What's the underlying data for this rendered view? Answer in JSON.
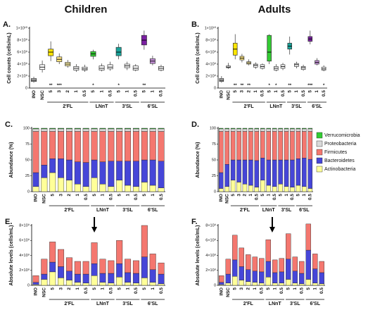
{
  "headers": [
    "Children",
    "Adults"
  ],
  "chart_data": [
    {
      "type": "box",
      "panel": "A.",
      "y_label": "Cell counts (cells/mL)",
      "categories": [
        "INO",
        "NSC",
        "5",
        "3",
        "2",
        "1",
        "0.5",
        "5",
        "1",
        "0.5",
        "5",
        "1",
        "0.5",
        "5",
        "1",
        "0.5"
      ],
      "groups": [
        "2'FL",
        "LNnT",
        "3'SL",
        "6'SL"
      ],
      "colors": [
        "#bfbfbf",
        "#ffffff",
        "#ffe600",
        "#ffe680",
        "#fff1a8",
        "#ffffff",
        "#ffffff",
        "#33cc33",
        "#ffffff",
        "#ffffff",
        "#1aa39a",
        "#ffffff",
        "#ffffff",
        "#7a1fa2",
        "#c38fd6",
        "#ffffff"
      ],
      "min": [
        900000000.0,
        2600000000.0,
        4500000000.0,
        4000000000.0,
        3400000000.0,
        2700000000.0,
        2700000000.0,
        4800000000.0,
        2800000000.0,
        2900000000.0,
        4800000000.0,
        3000000000.0,
        2800000000.0,
        6400000000.0,
        3800000000.0,
        2800000000.0
      ],
      "q1": [
        1100000000.0,
        3100000000.0,
        5400000000.0,
        4400000000.0,
        3700000000.0,
        3000000000.0,
        3000000000.0,
        5300000000.0,
        3000000000.0,
        3200000000.0,
        5400000000.0,
        3400000000.0,
        3000000000.0,
        7200000000.0,
        4100000000.0,
        3000000000.0
      ],
      "median": [
        1300000000.0,
        3500000000.0,
        6000000000.0,
        4800000000.0,
        4000000000.0,
        3300000000.0,
        3200000000.0,
        5700000000.0,
        3300000000.0,
        3500000000.0,
        6000000000.0,
        3700000000.0,
        3300000000.0,
        8000000000.0,
        4500000000.0,
        3300000000.0
      ],
      "q3": [
        1600000000.0,
        3900000000.0,
        6500000000.0,
        5200000000.0,
        4300000000.0,
        3600000000.0,
        3500000000.0,
        6100000000.0,
        3700000000.0,
        3900000000.0,
        6800000000.0,
        4000000000.0,
        3700000000.0,
        8800000000.0,
        4900000000.0,
        3600000000.0
      ],
      "max": [
        1900000000.0,
        4600000000.0,
        7800000000.0,
        5800000000.0,
        4700000000.0,
        4000000000.0,
        3900000000.0,
        6400000000.0,
        4100000000.0,
        4400000000.0,
        7400000000.0,
        4400000000.0,
        4000000000.0,
        9600000000.0,
        5400000000.0,
        3900000000.0
      ],
      "sig": [
        null,
        null,
        "**",
        "***",
        null,
        null,
        null,
        "*",
        null,
        null,
        "*",
        null,
        null,
        "**",
        null,
        null
      ],
      "ylim": [
        0,
        10000000000.0
      ],
      "yticks": [
        0,
        {
          "value": 2000000000.0,
          "label": "2×10⁹"
        },
        {
          "value": 4000000000.0,
          "label": "4×10⁹"
        },
        {
          "value": 6000000000.0,
          "label": "6×10⁹"
        },
        {
          "value": 8000000000.0,
          "label": "8×10⁹"
        },
        {
          "value": 10000000000.0,
          "label": "1×10¹⁰"
        }
      ]
    },
    {
      "type": "box",
      "panel": "B.",
      "y_label": "Cell counts (cells/mL)",
      "categories": [
        "INO",
        "NSC",
        "5",
        "3",
        "2",
        "1",
        "0.5",
        "5",
        "1",
        "0.5",
        "5",
        "1",
        "0.5",
        "5",
        "1",
        "0.5"
      ],
      "groups": [
        "2'FL",
        "LNnT",
        "3'SL",
        "6'SL"
      ],
      "colors": [
        "#bfbfbf",
        "#ffffff",
        "#ffe600",
        "#ffe680",
        "#fff1a8",
        "#ffffff",
        "#ffffff",
        "#33cc33",
        "#ffffff",
        "#ffffff",
        "#1aa39a",
        "#ffffff",
        "#ffffff",
        "#7a1fa2",
        "#c38fd6",
        "#ffffff"
      ],
      "min": [
        900000000.0,
        3200000000.0,
        4800000000.0,
        4300000000.0,
        3800000000.0,
        3200000000.0,
        3100000000.0,
        4000000000.0,
        2800000000.0,
        3000000000.0,
        5600000000.0,
        3300000000.0,
        2900000000.0,
        7300000000.0,
        3800000000.0,
        2800000000.0
      ],
      "q1": [
        1100000000.0,
        3400000000.0,
        5500000000.0,
        4700000000.0,
        4000000000.0,
        3500000000.0,
        3300000000.0,
        4500000000.0,
        3000000000.0,
        3300000000.0,
        6500000000.0,
        3600000000.0,
        3100000000.0,
        7800000000.0,
        4000000000.0,
        3000000000.0
      ],
      "median": [
        1300000000.0,
        3500000000.0,
        6500000000.0,
        5000000000.0,
        4200000000.0,
        3800000000.0,
        3600000000.0,
        6000000000.0,
        3300000000.0,
        3600000000.0,
        7000000000.0,
        3900000000.0,
        3400000000.0,
        8200000000.0,
        4300000000.0,
        3200000000.0
      ],
      "q3": [
        1600000000.0,
        3700000000.0,
        7500000000.0,
        5300000000.0,
        4400000000.0,
        4000000000.0,
        3900000000.0,
        8800000000.0,
        3600000000.0,
        3900000000.0,
        7500000000.0,
        4100000000.0,
        3600000000.0,
        8600000000.0,
        4600000000.0,
        3500000000.0
      ],
      "max": [
        2000000000.0,
        4200000000.0,
        9000000000.0,
        5700000000.0,
        4800000000.0,
        4300000000.0,
        4100000000.0,
        9000000000.0,
        4000000000.0,
        4200000000.0,
        8600000000.0,
        4400000000.0,
        3900000000.0,
        9600000000.0,
        5000000000.0,
        3800000000.0
      ],
      "sig": [
        null,
        null,
        "**",
        "**",
        "**",
        null,
        null,
        "*",
        "*",
        null,
        "**",
        null,
        null,
        "***",
        null,
        "*"
      ],
      "ylim": [
        0,
        10000000000.0
      ],
      "yticks": [
        0,
        {
          "value": 2000000000.0,
          "label": "2×10⁹"
        },
        {
          "value": 4000000000.0,
          "label": "4×10⁹"
        },
        {
          "value": 6000000000.0,
          "label": "6×10⁹"
        },
        {
          "value": 8000000000.0,
          "label": "8×10⁹"
        },
        {
          "value": 10000000000.0,
          "label": "1×10¹⁰"
        }
      ]
    },
    {
      "type": "stacked_bar",
      "panel": "C.",
      "y_label": "Abundance (%)",
      "categories": [
        "INO",
        "NSC",
        "5",
        "3",
        "2",
        "1",
        "0.5",
        "5",
        "1",
        "0.5",
        "5",
        "1",
        "0.5",
        "5",
        "1",
        "0.5"
      ],
      "groups": [
        "2'FL",
        "LNnT",
        "3'SL",
        "6'SL"
      ],
      "ylim": [
        0,
        100
      ],
      "yticks": [
        0,
        25,
        50,
        75,
        100
      ],
      "series": [
        {
          "name": "Actinobacteria",
          "color": "#ffff99",
          "values": [
            8,
            22,
            30,
            22,
            18,
            12,
            8,
            22,
            12,
            8,
            18,
            10,
            8,
            15,
            10,
            6
          ]
        },
        {
          "name": "Bacteroidetes",
          "color": "#4646d8",
          "values": [
            22,
            20,
            22,
            30,
            32,
            35,
            38,
            28,
            35,
            40,
            30,
            38,
            40,
            35,
            40,
            42
          ]
        },
        {
          "name": "Firmicutes",
          "color": "#f4776f",
          "values": [
            65,
            53,
            43,
            43,
            45,
            48,
            49,
            45,
            48,
            47,
            47,
            47,
            47,
            45,
            45,
            47
          ]
        },
        {
          "name": "Proteobacteria",
          "color": "#d9d9d9",
          "values": [
            4,
            4,
            4,
            4,
            4,
            4,
            4,
            4,
            4,
            4,
            4,
            4,
            4,
            4,
            4,
            4
          ]
        },
        {
          "name": "Verrucomicrobia",
          "color": "#33cc33",
          "values": [
            1,
            1,
            1,
            1,
            1,
            1,
            1,
            1,
            1,
            1,
            1,
            1,
            1,
            1,
            1,
            1
          ]
        }
      ]
    },
    {
      "type": "stacked_bar",
      "panel": "D.",
      "y_label": "Abundance (%)",
      "categories": [
        "INO",
        "NSC",
        "5",
        "3",
        "2",
        "1",
        "0.5",
        "5",
        "1",
        "0.5",
        "5",
        "1",
        "0.5",
        "5",
        "1",
        "0.5"
      ],
      "groups": [
        "2'FL",
        "LNnT",
        "3'SL",
        "6'SL"
      ],
      "ylim": [
        0,
        100
      ],
      "yticks": [
        0,
        25,
        50,
        75,
        100
      ],
      "legend": "right",
      "series": [
        {
          "name": "Actinobacteria",
          "color": "#ffff99",
          "values": [
            5,
            8,
            18,
            15,
            12,
            10,
            7,
            18,
            10,
            8,
            12,
            8,
            7,
            10,
            8,
            5
          ]
        },
        {
          "name": "Bacteroidetes",
          "color": "#4646d8",
          "values": [
            25,
            35,
            32,
            35,
            38,
            40,
            42,
            35,
            40,
            42,
            38,
            42,
            43,
            42,
            45,
            46
          ]
        },
        {
          "name": "Firmicutes",
          "color": "#f4776f",
          "values": [
            65,
            52,
            45,
            45,
            45,
            45,
            46,
            42,
            45,
            45,
            45,
            45,
            45,
            43,
            42,
            44
          ]
        },
        {
          "name": "Proteobacteria",
          "color": "#d9d9d9",
          "values": [
            4,
            4,
            4,
            4,
            4,
            4,
            4,
            4,
            4,
            4,
            4,
            4,
            4,
            4,
            4,
            4
          ]
        },
        {
          "name": "Verrucomicrobia",
          "color": "#33cc33",
          "values": [
            1,
            1,
            1,
            1,
            1,
            1,
            1,
            1,
            1,
            1,
            1,
            1,
            1,
            1,
            1,
            1
          ]
        }
      ]
    },
    {
      "type": "stacked_bar",
      "panel": "E.",
      "y_label": "Absolute levels (cells/mL)",
      "categories": [
        "INO",
        "NSC",
        "5",
        "3",
        "2",
        "1",
        "0.5",
        "5",
        "1",
        "0.5",
        "5",
        "1",
        "0.5",
        "5",
        "1",
        "0.5"
      ],
      "groups": [
        "2'FL",
        "LNnT",
        "3'SL",
        "6'SL"
      ],
      "ylim": [
        0,
        8000000000.0
      ],
      "yticks": [
        0,
        {
          "value": 2000000000.0,
          "label": "2×10⁹"
        },
        {
          "value": 4000000000.0,
          "label": "4×10⁹"
        },
        {
          "value": 6000000000.0,
          "label": "6×10⁹"
        },
        {
          "value": 8000000000.0,
          "label": "8×10⁹"
        }
      ],
      "series": [
        {
          "name": "Actinobacteria",
          "color": "#ffff99",
          "values": [
            100000000.0,
            800000000.0,
            1800000000.0,
            1000000000.0,
            700000000.0,
            400000000.0,
            300000000.0,
            1300000000.0,
            400000000.0,
            300000000.0,
            1100000000.0,
            400000000.0,
            300000000.0,
            1000000000.0,
            400000000.0,
            200000000.0
          ]
        },
        {
          "name": "Bacteroidetes",
          "color": "#4646d8",
          "values": [
            300000000.0,
            700000000.0,
            1300000000.0,
            1500000000.0,
            1200000000.0,
            1100000000.0,
            1200000000.0,
            1600000000.0,
            1200000000.0,
            1300000000.0,
            1800000000.0,
            1300000000.0,
            1300000000.0,
            2800000000.0,
            1700000000.0,
            1300000000.0
          ]
        },
        {
          "name": "Firmicutes",
          "color": "#f4776f",
          "values": [
            900000000.0,
            2000000000.0,
            2700000000.0,
            2300000000.0,
            1800000000.0,
            1700000000.0,
            1700000000.0,
            2800000000.0,
            1900000000.0,
            1700000000.0,
            3100000000.0,
            1800000000.0,
            1700000000.0,
            4200000000.0,
            2100000000.0,
            1500000000.0
          ]
        }
      ]
    },
    {
      "type": "stacked_bar",
      "panel": "F.",
      "y_label": "Absolute levels (cells/mL)",
      "categories": [
        "INO",
        "NSC",
        "5",
        "3",
        "2",
        "1",
        "0.5",
        "5",
        "1",
        "0.5",
        "5",
        "1",
        "0.5",
        "5",
        "1",
        "0.5"
      ],
      "groups": [
        "2'FL",
        "LNnT",
        "3'SL",
        "6'SL"
      ],
      "ylim": [
        0,
        8000000000.0
      ],
      "yticks": [
        0,
        {
          "value": 2000000000.0,
          "label": "2×10⁹"
        },
        {
          "value": 4000000000.0,
          "label": "4×10⁹"
        },
        {
          "value": 6000000000.0,
          "label": "6×10⁹"
        },
        {
          "value": 8000000000.0,
          "label": "8×10⁹"
        }
      ],
      "series": [
        {
          "name": "Actinobacteria",
          "color": "#ffff99",
          "values": [
            100000000.0,
            300000000.0,
            1200000000.0,
            700000000.0,
            500000000.0,
            400000000.0,
            300000000.0,
            1100000000.0,
            300000000.0,
            300000000.0,
            800000000.0,
            300000000.0,
            200000000.0,
            800000000.0,
            300000000.0,
            200000000.0
          ]
        },
        {
          "name": "Bacteroidetes",
          "color": "#4646d8",
          "values": [
            300000000.0,
            1200000000.0,
            2200000000.0,
            1800000000.0,
            1600000000.0,
            1500000000.0,
            1500000000.0,
            2100000000.0,
            1400000000.0,
            1500000000.0,
            2700000000.0,
            1600000000.0,
            1400000000.0,
            3900000000.0,
            1900000000.0,
            1500000000.0
          ]
        },
        {
          "name": "Firmicutes",
          "color": "#f4776f",
          "values": [
            900000000.0,
            2000000000.0,
            3300000000.0,
            2500000000.0,
            2000000000.0,
            1900000000.0,
            1800000000.0,
            2900000000.0,
            1700000000.0,
            1800000000.0,
            3400000000.0,
            1900000000.0,
            1600000000.0,
            3500000000.0,
            2000000000.0,
            1500000000.0
          ]
        }
      ]
    }
  ]
}
